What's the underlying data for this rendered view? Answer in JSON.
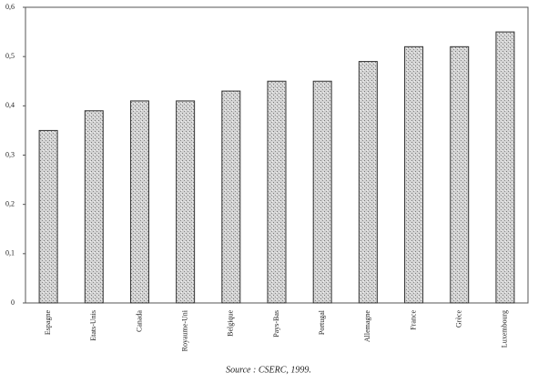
{
  "chart_data": {
    "type": "bar",
    "categories": [
      "Espagne",
      "Etats-Unis",
      "Canada",
      "Royaume-Uni",
      "Belgique",
      "Pays-Bas",
      "Portugal",
      "Allemagne",
      "France",
      "Grèce",
      "Luxembourg"
    ],
    "values": [
      0.35,
      0.39,
      0.41,
      0.41,
      0.43,
      0.45,
      0.45,
      0.49,
      0.52,
      0.52,
      0.55
    ],
    "color": "#bdbdbd",
    "ylim": [
      0,
      0.6
    ],
    "yticks": [
      {
        "value": 0,
        "label": "0"
      },
      {
        "value": 0.1,
        "label": "0,1"
      },
      {
        "value": 0.2,
        "label": "0,2"
      },
      {
        "value": 0.3,
        "label": "0,3"
      },
      {
        "value": 0.4,
        "label": "0,4"
      },
      {
        "value": 0.5,
        "label": "0,5"
      },
      {
        "value": 0.6,
        "label": "0,6"
      }
    ],
    "source": "Source : CSERC, 1999."
  }
}
